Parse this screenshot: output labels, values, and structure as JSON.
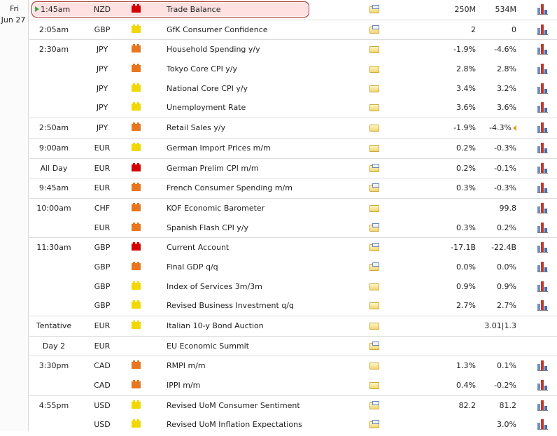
{
  "date": {
    "day": "Fri",
    "date": "Jun 27"
  },
  "colors": {
    "high": "#d40000",
    "medium": "#e8761f",
    "low": "#f0d800",
    "highlight_border": "#a11a1a"
  },
  "events": [
    {
      "time": "1:45am",
      "currency": "NZD",
      "impact": "high",
      "event": "Trade Balance",
      "detail_icon": "folder-doc-icon",
      "actual": "250M",
      "forecast": "534M",
      "chart": true,
      "current": true,
      "group_start": true
    },
    {
      "time": "2:05am",
      "currency": "GBP",
      "impact": "low",
      "event": "GfK Consumer Confidence",
      "detail_icon": "folder-doc-icon",
      "actual": "2",
      "forecast": "0",
      "chart": true,
      "group_start": true
    },
    {
      "time": "2:30am",
      "currency": "JPY",
      "impact": "medium",
      "event": "Household Spending y/y",
      "detail_icon": "folder-icon",
      "actual": "-1.9%",
      "forecast": "-4.6%",
      "chart": true,
      "group_start": true
    },
    {
      "time": "",
      "currency": "JPY",
      "impact": "medium",
      "event": "Tokyo Core CPI y/y",
      "detail_icon": "folder-icon",
      "actual": "2.8%",
      "forecast": "2.8%",
      "chart": true
    },
    {
      "time": "",
      "currency": "JPY",
      "impact": "low",
      "event": "National Core CPI y/y",
      "detail_icon": "folder-icon",
      "actual": "3.4%",
      "forecast": "3.2%",
      "chart": true
    },
    {
      "time": "",
      "currency": "JPY",
      "impact": "low",
      "event": "Unemployment Rate",
      "detail_icon": "folder-icon",
      "actual": "3.6%",
      "forecast": "3.6%",
      "chart": true
    },
    {
      "time": "2:50am",
      "currency": "JPY",
      "impact": "medium",
      "event": "Retail Sales y/y",
      "detail_icon": "folder-icon",
      "actual": "-1.9%",
      "forecast": "-4.3%",
      "chart": true,
      "group_start": true,
      "revised": true
    },
    {
      "time": "9:00am",
      "currency": "EUR",
      "impact": "low",
      "event": "German Import Prices m/m",
      "detail_icon": "folder-icon",
      "actual": "0.2%",
      "forecast": "-0.3%",
      "chart": true,
      "group_start": true
    },
    {
      "time": "All Day",
      "currency": "EUR",
      "impact": "high",
      "event": "German Prelim CPI m/m",
      "detail_icon": "folder-doc-icon",
      "actual": "0.2%",
      "forecast": "-0.1%",
      "chart": true,
      "group_start": true
    },
    {
      "time": "9:45am",
      "currency": "EUR",
      "impact": "medium",
      "event": "French Consumer Spending m/m",
      "detail_icon": "folder-doc-icon",
      "actual": "0.3%",
      "forecast": "-0.3%",
      "chart": true,
      "group_start": true
    },
    {
      "time": "10:00am",
      "currency": "CHF",
      "impact": "medium",
      "event": "KOF Economic Barometer",
      "detail_icon": "folder-icon",
      "actual": "",
      "forecast": "99.8",
      "chart": true,
      "group_start": true
    },
    {
      "time": "",
      "currency": "EUR",
      "impact": "medium",
      "event": "Spanish Flash CPI y/y",
      "detail_icon": "folder-doc-icon",
      "actual": "0.3%",
      "forecast": "0.2%",
      "chart": true
    },
    {
      "time": "11:30am",
      "currency": "GBP",
      "impact": "high",
      "event": "Current Account",
      "detail_icon": "folder-doc-icon",
      "actual": "-17.1B",
      "forecast": "-22.4B",
      "chart": true,
      "group_start": true
    },
    {
      "time": "",
      "currency": "GBP",
      "impact": "medium",
      "event": "Final GDP q/q",
      "detail_icon": "folder-doc-icon",
      "actual": "0.0%",
      "forecast": "0.0%",
      "chart": true
    },
    {
      "time": "",
      "currency": "GBP",
      "impact": "low",
      "event": "Index of Services 3m/3m",
      "detail_icon": "folder-icon",
      "actual": "0.9%",
      "forecast": "0.9%",
      "chart": true
    },
    {
      "time": "",
      "currency": "GBP",
      "impact": "low",
      "event": "Revised Business Investment q/q",
      "detail_icon": "folder-icon",
      "actual": "2.7%",
      "forecast": "2.7%",
      "chart": true
    },
    {
      "time": "Tentative",
      "currency": "EUR",
      "impact": "low",
      "event": "Italian 10-y Bond Auction",
      "detail_icon": "folder-icon",
      "actual": "",
      "forecast": "3.01|1.3",
      "chart": false,
      "group_start": true
    },
    {
      "time": "Day 2",
      "currency": "EUR",
      "impact": "",
      "event": "EU Economic Summit",
      "detail_icon": "folder-doc-icon",
      "actual": "",
      "forecast": "",
      "chart": false,
      "group_start": true
    },
    {
      "time": "3:30pm",
      "currency": "CAD",
      "impact": "medium",
      "event": "RMPI m/m",
      "detail_icon": "folder-icon",
      "actual": "1.3%",
      "forecast": "0.1%",
      "chart": true,
      "group_start": true
    },
    {
      "time": "",
      "currency": "CAD",
      "impact": "medium",
      "event": "IPPI m/m",
      "detail_icon": "folder-icon",
      "actual": "0.4%",
      "forecast": "-0.2%",
      "chart": true
    },
    {
      "time": "4:55pm",
      "currency": "USD",
      "impact": "low",
      "event": "Revised UoM Consumer Sentiment",
      "detail_icon": "folder-doc-icon",
      "actual": "82.2",
      "forecast": "81.2",
      "chart": true,
      "group_start": true
    },
    {
      "time": "",
      "currency": "USD",
      "impact": "low",
      "event": "Revised UoM Inflation Expectations",
      "detail_icon": "folder-doc-icon",
      "actual": "",
      "forecast": "3.0%",
      "chart": true
    }
  ]
}
